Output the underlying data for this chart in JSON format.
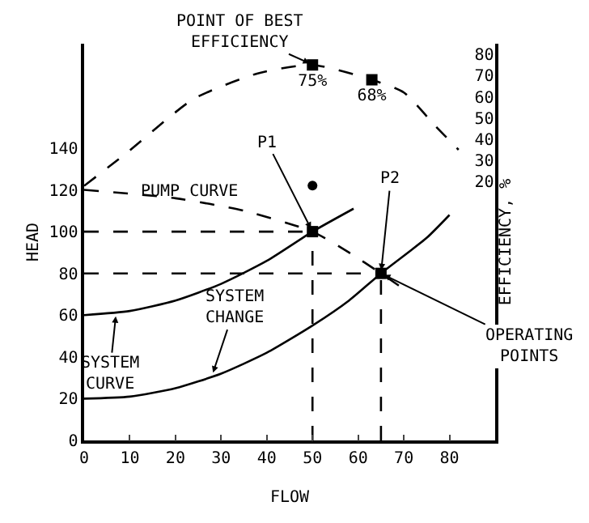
{
  "chart_data": {
    "type": "line",
    "xlabel": "FLOW",
    "ylabel": "HEAD",
    "y2label": "EFFICIENCY, %",
    "xlim": [
      0,
      90
    ],
    "xticks": [
      0,
      10,
      20,
      30,
      40,
      50,
      60,
      70,
      80
    ],
    "ylim": [
      0,
      190
    ],
    "yticks": [
      0,
      20,
      40,
      60,
      80,
      100,
      120,
      140
    ],
    "y2lim": [
      -102,
      85
    ],
    "y2ticks": [
      20,
      30,
      40,
      50,
      60,
      70,
      80
    ],
    "marker": "none",
    "line_style": "solid",
    "series": [
      {
        "axis": "y2",
        "color": "#000000",
        "line_style": "dashed",
        "x": [
          0,
          9,
          24,
          38,
          50,
          63,
          70,
          77,
          82
        ],
        "values": [
          18,
          33,
          59,
          71,
          75,
          68,
          62,
          46,
          35
        ]
      },
      {
        "type": "scatter",
        "axis": "y2",
        "color": "#000000",
        "marker": "square",
        "x": [
          50,
          63
        ],
        "values": [
          75,
          68
        ],
        "value_labels": [
          "75%",
          "68%"
        ]
      },
      {
        "color": "#000000",
        "line_style": "dashed",
        "x": [
          0,
          20,
          35,
          50,
          58,
          65,
          69
        ],
        "values": [
          120,
          116,
          110,
          100,
          90,
          80,
          74
        ]
      },
      {
        "color": "#000000",
        "x": [
          0,
          10,
          20,
          30,
          40,
          50,
          59
        ],
        "values": [
          60,
          62,
          67,
          75,
          86,
          100,
          111
        ]
      },
      {
        "color": "#000000",
        "x": [
          0,
          10,
          20,
          30,
          40,
          50,
          58,
          65,
          75,
          80
        ],
        "values": [
          20,
          21,
          25,
          32,
          42,
          55,
          67,
          80,
          97,
          108
        ]
      },
      {
        "color": "#000000",
        "line_style": "dashed",
        "x": [
          0,
          50
        ],
        "values": [
          100,
          100
        ]
      },
      {
        "color": "#000000",
        "line_style": "dashed",
        "x": [
          0,
          65
        ],
        "values": [
          80,
          80
        ]
      },
      {
        "color": "#000000",
        "line_style": "dashed",
        "x": [
          50,
          50
        ],
        "values": [
          0,
          100
        ]
      },
      {
        "color": "#000000",
        "line_style": "dashed",
        "x": [
          65,
          65
        ],
        "values": [
          0,
          80
        ]
      },
      {
        "type": "scatter",
        "color": "#000000",
        "marker": "square",
        "x": [
          50,
          65
        ],
        "values": [
          100,
          80
        ]
      },
      {
        "type": "scatter",
        "color": "#000000",
        "marker": "circle",
        "x": [
          50
        ],
        "values": [
          122
        ]
      }
    ],
    "annotations": [
      {
        "text": "POINT OF BEST\nEFFICIENCY",
        "x": 50,
        "y": 180
      },
      {
        "text": "P1",
        "x": 50,
        "y": 100
      },
      {
        "text": "P2",
        "x": 65,
        "y": 80
      },
      {
        "text": "PUMP CURVE",
        "x": 23,
        "y": 119
      },
      {
        "text": "SYSTEM\nCHANGE",
        "x": 28,
        "y": 31
      },
      {
        "text": "SYSTEM\nCURVE",
        "x": 7,
        "y": 61
      },
      {
        "text": "OPERATING\nPOINTS",
        "x": 65,
        "y": 80
      }
    ]
  }
}
